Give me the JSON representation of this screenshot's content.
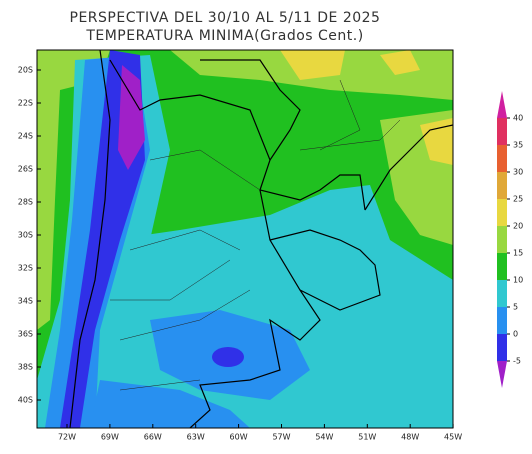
{
  "title": [
    "PERSPECTIVA DEL 30/10 AL 5/11 DE 2025",
    "TEMPERATURA MINIMA(Grados Cent.)"
  ],
  "lat_labels": [
    "20S",
    "22S",
    "24S",
    "26S",
    "28S",
    "30S",
    "32S",
    "34S",
    "36S",
    "38S",
    "40S"
  ],
  "lon_labels": [
    "72W",
    "69W",
    "66W",
    "63W",
    "60W",
    "57W",
    "54W",
    "51W",
    "48W",
    "45W"
  ],
  "colorbar": {
    "ticks": [
      -5,
      0,
      5,
      10,
      15,
      20,
      25,
      30,
      35,
      40
    ],
    "colors": [
      "#a020c8",
      "#3030e8",
      "#2890f0",
      "#30c8d0",
      "#20c020",
      "#98d840",
      "#e8d840",
      "#e0a838",
      "#e86030",
      "#e03060",
      "#d020a0"
    ]
  }
}
